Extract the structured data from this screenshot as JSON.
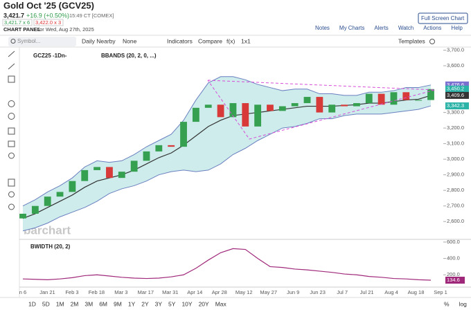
{
  "header": {
    "title": "Gold Oct '25 (GCV25)",
    "last": "3,421.7",
    "change": "+16.9 (+0.50%)",
    "time": "15:49 CT [COMEX]",
    "bid": "3,421.7 x 6",
    "ask": "3,422.0 x 3",
    "panel": "CHART PANEL",
    "date": "for Wed, Aug 27th, 2025",
    "button": "Full Screen Chart",
    "links": [
      "Notes",
      "My Charts",
      "Alerts",
      "Watch",
      "Actions",
      "Help"
    ]
  },
  "toolbar": {
    "symbol": "Symbol...",
    "period": "Daily Nearby",
    "none": "None",
    "indicators": "Indicators",
    "compare": "Compare",
    "fx": "f(x)",
    "layout": "1x1",
    "templates": "Templates"
  },
  "watermark": "barchart",
  "chart_data": [
    {
      "type": "candlestick",
      "legend": [
        "GCZ25 -1Dn-",
        "BBANDS (20, 2, 0, ...)"
      ],
      "open": [
        2620,
        2650,
        2700,
        2760,
        2790,
        2860,
        2930,
        2950,
        2880,
        2920,
        2990,
        3050,
        3090,
        3080,
        3240,
        3330,
        3350,
        3270,
        3360,
        3210,
        3350,
        3310,
        3340,
        3360,
        3400,
        3300,
        3350,
        3340,
        3360,
        3420,
        3350,
        3430,
        3380,
        3380
      ],
      "close": [
        2650,
        2700,
        2760,
        2790,
        2860,
        2930,
        2950,
        2880,
        2920,
        2990,
        3050,
        3090,
        3080,
        3240,
        3330,
        3350,
        3270,
        3360,
        3210,
        3350,
        3310,
        3340,
        3360,
        3400,
        3300,
        3350,
        3340,
        3360,
        3420,
        3350,
        3430,
        3380,
        3380,
        3450.2
      ],
      "up_color": "#35a04f",
      "down_color": "#d83a3a",
      "bands": {
        "upper": [
          2700,
          2740,
          2790,
          2830,
          2880,
          2950,
          2990,
          2980,
          2990,
          3030,
          3080,
          3120,
          3160,
          3250,
          3380,
          3490,
          3530,
          3530,
          3510,
          3480,
          3460,
          3440,
          3450,
          3450,
          3420,
          3420,
          3410,
          3410,
          3430,
          3430,
          3440,
          3460,
          3460,
          3476.6
        ],
        "middle": [
          2620,
          2650,
          2690,
          2730,
          2770,
          2820,
          2860,
          2880,
          2900,
          2930,
          2970,
          3010,
          3040,
          3090,
          3150,
          3210,
          3250,
          3280,
          3290,
          3300,
          3310,
          3320,
          3330,
          3340,
          3340,
          3340,
          3345,
          3350,
          3360,
          3360,
          3370,
          3380,
          3385,
          3409.6
        ],
        "lower": [
          2540,
          2560,
          2590,
          2630,
          2660,
          2690,
          2730,
          2780,
          2810,
          2830,
          2860,
          2900,
          2920,
          2930,
          2920,
          2930,
          2970,
          3030,
          3070,
          3120,
          3160,
          3200,
          3210,
          3230,
          3260,
          3260,
          3280,
          3290,
          3290,
          3290,
          3300,
          3310,
          3320,
          3342.3
        ],
        "band_color": "#6a7fc0",
        "middle_color": "#333333",
        "fill": "#cdeceb"
      },
      "ylim": [
        2490,
        3720
      ],
      "yticks": [
        {
          "value": 3700,
          "label": "3,700.0"
        },
        {
          "value": 3600,
          "label": "3,600.0"
        },
        {
          "value": 3300,
          "label": "3,300.0"
        },
        {
          "value": 3200,
          "label": "3,200.0"
        },
        {
          "value": 3100,
          "label": "3,100.0"
        },
        {
          "value": 3000,
          "label": "3,000.0"
        },
        {
          "value": 2900,
          "label": "2,900.0"
        },
        {
          "value": 2800,
          "label": "2,800.0"
        },
        {
          "value": 2700,
          "label": "2,700.0"
        },
        {
          "value": 2600,
          "label": "2,600.0"
        }
      ],
      "price_tags": [
        {
          "value": 3476.6,
          "label": "3,476.6",
          "color": "#7b6fd0"
        },
        {
          "value": 3450.2,
          "label": "3,450.2",
          "color": "#2bb3a8"
        },
        {
          "value": 3409.6,
          "label": "3,409.6",
          "color": "#333333"
        },
        {
          "value": 3342.3,
          "label": "3,342.3",
          "color": "#2bb3a8"
        }
      ]
    },
    {
      "type": "line",
      "legend": "BWIDTH (20, 2)",
      "color": "#a0287a",
      "values": [
        150,
        145,
        140,
        150,
        165,
        190,
        200,
        185,
        170,
        160,
        155,
        160,
        175,
        200,
        280,
        380,
        470,
        520,
        510,
        400,
        300,
        290,
        270,
        260,
        245,
        230,
        210,
        200,
        180,
        170,
        155,
        150,
        140,
        134.6
      ],
      "ylim": [
        50,
        633
      ],
      "yticks": [
        {
          "value": 600,
          "label": "600.0"
        },
        {
          "value": 400,
          "label": "400.0"
        },
        {
          "value": 200,
          "label": "200.0"
        }
      ],
      "x_labels": [
        "n 6",
        "Jan 21",
        "Feb 3",
        "Feb 18",
        "Mar 3",
        "Mar 17",
        "Mar 31",
        "Apr 14",
        "Apr 28",
        "May 12",
        "May 27",
        "Jun 9",
        "Jun 23",
        "Jul 7",
        "Jul 21",
        "Aug 4",
        "Aug 18",
        "Sep 1"
      ]
    }
  ],
  "range_buttons": [
    "1D",
    "5D",
    "1M",
    "2M",
    "3M",
    "6M",
    "9M",
    "1Y",
    "2Y",
    "3Y",
    "5Y",
    "10Y",
    "20Y",
    "Max"
  ],
  "axis_options": [
    "%",
    "log"
  ]
}
